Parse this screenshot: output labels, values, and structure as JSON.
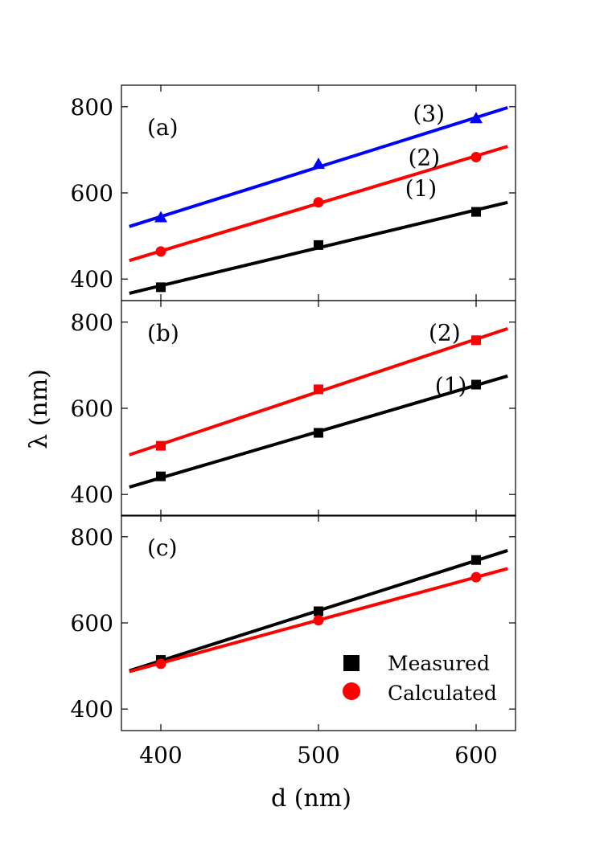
{
  "figure": {
    "ylabel": "λ (nm)",
    "xlabel": "d (nm)",
    "legend": {
      "measured": "Measured",
      "calculated": "Calculated"
    }
  },
  "chart_data": [
    {
      "type": "scatter",
      "panel_label": "(a)",
      "xlim": [
        375,
        625
      ],
      "ylim": [
        350,
        850
      ],
      "x_ticks": [
        400,
        500,
        600
      ],
      "y_ticks": [
        400,
        600,
        800
      ],
      "line_labels": [
        {
          "text": "(3)",
          "x": 570,
          "y": 785
        },
        {
          "text": "(2)",
          "x": 567,
          "y": 683
        },
        {
          "text": "(1)",
          "x": 565,
          "y": 611
        }
      ],
      "series": [
        {
          "type_key": "triangle",
          "color": "#0000ff",
          "x": [
            400,
            500,
            600
          ],
          "points": [
            543,
            667,
            773
          ],
          "fit": [
            [
              380,
              522
            ],
            [
              620,
              798
            ]
          ]
        },
        {
          "type_key": "circle",
          "color": "#ff0000",
          "x": [
            400,
            500,
            600
          ],
          "points": [
            464,
            578,
            683
          ],
          "fit": [
            [
              380,
              443
            ],
            [
              620,
              708
            ]
          ]
        },
        {
          "type_key": "square",
          "color": "#000000",
          "x": [
            400,
            500,
            600
          ],
          "points": [
            381,
            479,
            556
          ],
          "fit": [
            [
              380,
              367
            ],
            [
              620,
              578
            ]
          ]
        }
      ]
    },
    {
      "type": "scatter",
      "panel_label": "(b)",
      "xlim": [
        375,
        625
      ],
      "ylim": [
        350,
        850
      ],
      "x_ticks": [
        400,
        500,
        600
      ],
      "y_ticks": [
        400,
        600,
        800
      ],
      "line_labels": [
        {
          "text": "(2)",
          "x": 580,
          "y": 776
        },
        {
          "text": "(1)",
          "x": 584,
          "y": 653
        }
      ],
      "series": [
        {
          "type_key": "square",
          "color": "#ff0000",
          "x": [
            400,
            500,
            600
          ],
          "points": [
            513,
            644,
            758
          ],
          "fit": [
            [
              380,
              492
            ],
            [
              620,
              785
            ]
          ]
        },
        {
          "type_key": "square",
          "color": "#000000",
          "x": [
            400,
            500,
            600
          ],
          "points": [
            442,
            543,
            655
          ],
          "fit": [
            [
              380,
              417
            ],
            [
              620,
              675
            ]
          ]
        }
      ]
    },
    {
      "type": "scatter",
      "panel_label": "(c)",
      "xlim": [
        375,
        625
      ],
      "ylim": [
        350,
        850
      ],
      "x_ticks": [
        400,
        500,
        600
      ],
      "y_ticks": [
        400,
        600,
        800
      ],
      "line_labels": [],
      "series": [
        {
          "type_key": "square",
          "color": "#000000",
          "name": "Measured",
          "x": [
            400,
            500,
            600
          ],
          "points": [
            514,
            627,
            746
          ],
          "fit": [
            [
              380,
              489
            ],
            [
              620,
              768
            ]
          ]
        },
        {
          "type_key": "circle",
          "color": "#ff0000",
          "name": "Calculated",
          "x": [
            400,
            500,
            600
          ],
          "points": [
            505,
            606,
            706
          ],
          "fit": [
            [
              380,
              487
            ],
            [
              620,
              726
            ]
          ]
        }
      ]
    }
  ]
}
